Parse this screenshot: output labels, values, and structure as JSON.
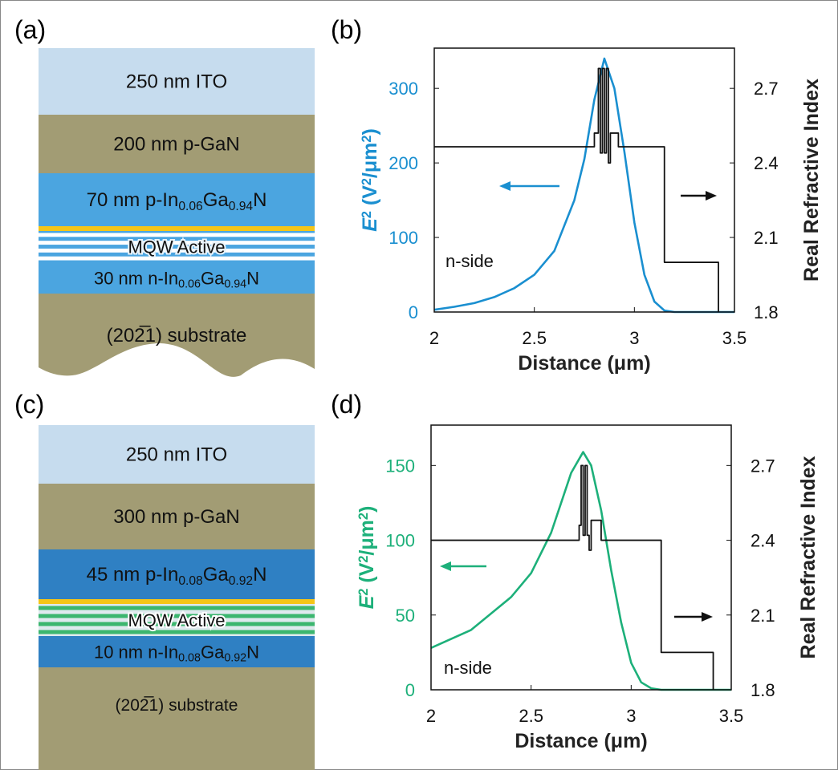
{
  "panel_labels": [
    "(a)",
    "(b)",
    "(c)",
    "(d)"
  ],
  "stacks": [
    {
      "layers": [
        {
          "parts": [
            "250 nm ITO"
          ]
        },
        {
          "parts": [
            "200 nm p-GaN"
          ]
        },
        {
          "parts": [
            "70 nm p-In",
            "0.06",
            "Ga",
            "0.94",
            "N"
          ]
        },
        {
          "parts": [
            "MQW Active"
          ]
        },
        {
          "parts": [
            "30 nm n-In",
            "0.06",
            "Ga",
            "0.94",
            "N"
          ]
        },
        {
          "parts": [
            "(202̅1) substrate"
          ]
        }
      ]
    },
    {
      "layers": [
        {
          "parts": [
            "250 nm ITO"
          ]
        },
        {
          "parts": [
            "300 nm p-GaN"
          ]
        },
        {
          "parts": [
            "45 nm p-In",
            "0.08",
            "Ga",
            "0.92",
            "N"
          ]
        },
        {
          "parts": [
            "MQW Active"
          ]
        },
        {
          "parts": [
            "10 nm n-In",
            "0.08",
            "Ga",
            "0.92",
            "N"
          ]
        },
        {
          "parts": [
            "(202̅1) substrate"
          ]
        }
      ]
    }
  ],
  "chart_data": [
    {
      "type": "line",
      "xlabel": "Distance (μm)",
      "ylabel": {
        "parts": [
          "E",
          "2",
          " (V",
          "2",
          "/μm",
          "2",
          ")"
        ]
      },
      "y2label": "Real Refractive Index",
      "annotations": [
        "n-side"
      ],
      "xlim": [
        2,
        3.5
      ],
      "xticks": [
        2,
        2.5,
        3,
        3.5
      ],
      "ylim": [
        0,
        354
      ],
      "yticks": [
        0,
        100,
        200,
        300
      ],
      "y2lim": [
        1.8,
        2.862
      ],
      "y2ticks": [
        1.8,
        2.1,
        2.4,
        2.7
      ],
      "series": [
        {
          "color": "#1a8fd0",
          "x": [
            2,
            2.1,
            2.2,
            2.3,
            2.4,
            2.5,
            2.6,
            2.7,
            2.75,
            2.8,
            2.85,
            2.9,
            2.95,
            3.0,
            3.05,
            3.1,
            3.15,
            3.2,
            3.5
          ],
          "values": [
            3,
            7,
            12,
            20,
            32,
            50,
            82,
            150,
            205,
            285,
            340,
            300,
            215,
            120,
            50,
            14,
            2,
            0,
            0
          ]
        },
        {
          "color": "#111111",
          "axis": "y2",
          "x": [
            2,
            2.8,
            2.8,
            2.82,
            2.82,
            2.83,
            2.83,
            2.84,
            2.84,
            2.85,
            2.85,
            2.86,
            2.86,
            2.87,
            2.87,
            2.88,
            2.88,
            2.92,
            2.92,
            3.15,
            3.15,
            3.42,
            3.42
          ],
          "values": [
            2.465,
            2.465,
            2.52,
            2.52,
            2.78,
            2.78,
            2.44,
            2.44,
            2.78,
            2.78,
            2.44,
            2.44,
            2.78,
            2.78,
            2.4,
            2.4,
            2.52,
            2.52,
            2.465,
            2.465,
            2.0,
            2.0,
            1.8
          ]
        }
      ]
    },
    {
      "type": "line",
      "xlabel": "Distance (μm)",
      "ylabel": {
        "parts": [
          "E",
          "2",
          " (V",
          "2",
          "/μm",
          "2",
          ")"
        ]
      },
      "y2label": "Real Refractive Index",
      "annotations": [
        "n-side"
      ],
      "xlim": [
        2,
        3.5
      ],
      "xticks": [
        2,
        2.5,
        3,
        3.5
      ],
      "ylim": [
        0,
        177
      ],
      "yticks": [
        0,
        50,
        100,
        150
      ],
      "y2lim": [
        1.8,
        2.862
      ],
      "y2ticks": [
        1.8,
        2.1,
        2.4,
        2.7
      ],
      "series": [
        {
          "color": "#1db07a",
          "x": [
            2,
            2.2,
            2.4,
            2.5,
            2.6,
            2.7,
            2.76,
            2.8,
            2.85,
            2.9,
            2.95,
            3.0,
            3.05,
            3.1,
            3.15,
            3.5
          ],
          "values": [
            28,
            40,
            62,
            78,
            105,
            145,
            159,
            150,
            120,
            80,
            45,
            18,
            5,
            1,
            0,
            0
          ]
        },
        {
          "color": "#111111",
          "axis": "y2",
          "x": [
            2,
            2.74,
            2.74,
            2.75,
            2.75,
            2.76,
            2.76,
            2.77,
            2.77,
            2.78,
            2.78,
            2.79,
            2.79,
            2.8,
            2.8,
            2.85,
            2.85,
            3.15,
            3.15,
            3.41,
            3.41
          ],
          "values": [
            2.4,
            2.4,
            2.46,
            2.46,
            2.7,
            2.7,
            2.42,
            2.42,
            2.7,
            2.7,
            2.42,
            2.42,
            2.36,
            2.36,
            2.48,
            2.48,
            2.4,
            2.4,
            1.95,
            1.95,
            1.8
          ]
        }
      ]
    }
  ]
}
